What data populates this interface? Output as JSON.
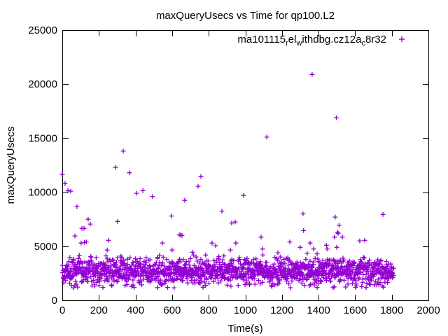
{
  "window": {
    "background": "#ffffff"
  },
  "chart_data": {
    "type": "scatter",
    "title": "maxQueryUsecs vs Time for qp100.L2",
    "xlabel": "Time(s)",
    "ylabel": "maxQueryUsecs",
    "xlim": [
      0,
      2000
    ],
    "ylim": [
      0,
      25000
    ],
    "xticks": [
      0,
      200,
      400,
      600,
      800,
      1000,
      1200,
      1400,
      1600,
      1800,
      2000
    ],
    "yticks": [
      0,
      5000,
      10000,
      15000,
      20000,
      25000
    ],
    "grid": false,
    "colors": {
      "marker": "#9400d3",
      "axis": "#000000",
      "text": "#000000",
      "background": "#ffffff"
    },
    "legend": {
      "position": "top-right-inside",
      "entries": [
        {
          "label": "ma101115_rel_withdbg.cz12a_c8r32",
          "label_display_segments": [
            {
              "t": "ma101115"
            },
            {
              "t": "r",
              "sub": true
            },
            {
              "t": "el"
            },
            {
              "t": "w",
              "sub": true
            },
            {
              "t": "ithdbg.cz12a"
            },
            {
              "t": "c",
              "sub": true
            },
            {
              "t": "8r32"
            }
          ],
          "marker": "plus",
          "color": "#9400d3"
        }
      ]
    },
    "series": [
      {
        "name": "ma101115_rel_withdbg.cz12a_c8r32",
        "marker": "plus",
        "color": "#9400d3",
        "outlier_points": [
          [
            0,
            11650
          ],
          [
            15,
            10800
          ],
          [
            31,
            10150
          ],
          [
            46,
            10100
          ],
          [
            69,
            5950
          ],
          [
            80,
            8650
          ],
          [
            103,
            5300
          ],
          [
            107,
            6650
          ],
          [
            119,
            6650
          ],
          [
            121,
            5350
          ],
          [
            131,
            5400
          ],
          [
            141,
            7500
          ],
          [
            153,
            7050
          ],
          [
            245,
            4650
          ],
          [
            252,
            5550
          ],
          [
            291,
            12300
          ],
          [
            302,
            7300
          ],
          [
            333,
            13800
          ],
          [
            367,
            11800
          ],
          [
            405,
            9900
          ],
          [
            440,
            10150
          ],
          [
            493,
            9600
          ],
          [
            547,
            5300
          ],
          [
            597,
            7800
          ],
          [
            600,
            4650
          ],
          [
            639,
            6050
          ],
          [
            646,
            6050
          ],
          [
            654,
            6000
          ],
          [
            669,
            9250
          ],
          [
            711,
            4450
          ],
          [
            742,
            10550
          ],
          [
            757,
            11450
          ],
          [
            818,
            5300
          ],
          [
            838,
            5050
          ],
          [
            872,
            8250
          ],
          [
            918,
            4650
          ],
          [
            925,
            7150
          ],
          [
            945,
            7250
          ],
          [
            948,
            5300
          ],
          [
            990,
            9700
          ],
          [
            1086,
            5850
          ],
          [
            1094,
            4750
          ],
          [
            1117,
            15100
          ],
          [
            1178,
            4400
          ],
          [
            1243,
            5400
          ],
          [
            1300,
            4900
          ],
          [
            1315,
            8000
          ],
          [
            1318,
            6450
          ],
          [
            1354,
            5300
          ],
          [
            1365,
            20900
          ],
          [
            1373,
            4750
          ],
          [
            1392,
            4300
          ],
          [
            1443,
            5100
          ],
          [
            1447,
            4750
          ],
          [
            1487,
            5850
          ],
          [
            1491,
            7700
          ],
          [
            1497,
            16900
          ],
          [
            1499,
            4900
          ],
          [
            1503,
            6300
          ],
          [
            1507,
            6200
          ],
          [
            1512,
            6950
          ],
          [
            1530,
            5850
          ],
          [
            1625,
            5500
          ],
          [
            1652,
            5550
          ],
          [
            1752,
            7950
          ]
        ],
        "dense_band": {
          "description": "dense noisy band of samples covering the whole run",
          "t_range": [
            1,
            1810
          ],
          "value_center": 2650,
          "value_spread": 620,
          "value_min": 1150,
          "value_max": 4480,
          "count": 1500,
          "seed": 42
        }
      }
    ]
  }
}
